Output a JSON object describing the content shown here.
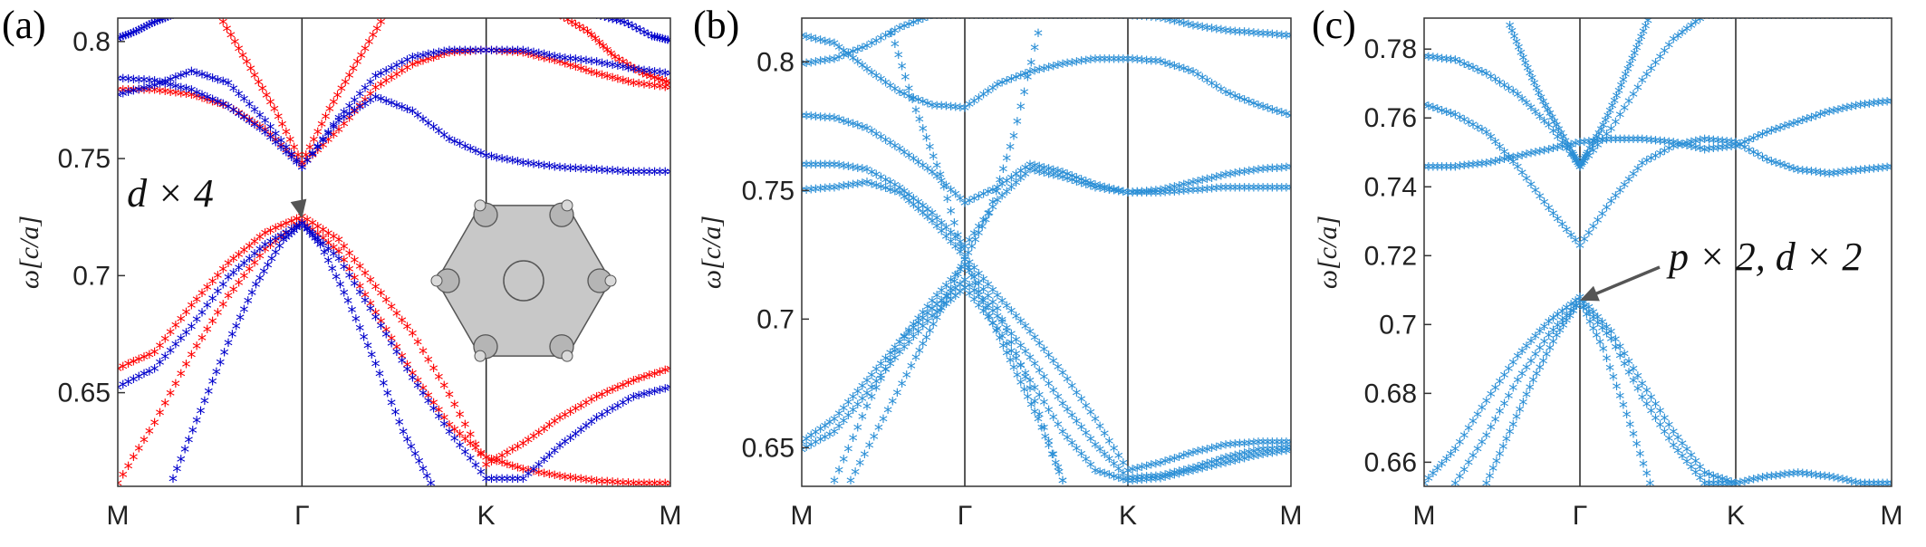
{
  "chart_data": [
    {
      "type": "scatter",
      "panel_label": "(a)",
      "ylabel": "ω[c/a]",
      "ylim": [
        0.61,
        0.81
      ],
      "yticks": [
        0.65,
        0.7,
        0.75,
        0.8
      ],
      "ytick_labels": [
        "0.65",
        "0.7",
        "0.75",
        "0.8"
      ],
      "xtick_labels": [
        "M",
        "Γ",
        "K",
        "M"
      ],
      "annotation": "d × 4",
      "annotation_target": {
        "x": 1.0,
        "y": 0.7245
      },
      "inset": "hexagonal-unit-cell",
      "series": [
        {
          "color": "#ff0000",
          "x": [
            0,
            0.2,
            0.4,
            0.6,
            0.8,
            1.0,
            1.2,
            1.4,
            1.6,
            1.8,
            2.0,
            2.2,
            2.4,
            2.6,
            2.8,
            3.0
          ],
          "y": [
            0.778,
            0.778,
            0.776,
            0.771,
            0.761,
            0.746,
            0.761,
            0.779,
            0.789,
            0.794,
            0.795,
            0.794,
            0.79,
            0.785,
            0.781,
            0.779
          ]
        },
        {
          "color": "#ff0000",
          "x": [
            0,
            0.2,
            0.4,
            0.6,
            0.8,
            1.0,
            1.2,
            1.4,
            1.6,
            1.8,
            2.0,
            2.2,
            2.4,
            2.6,
            2.8,
            3.0
          ],
          "y": [
            0.659,
            0.666,
            0.686,
            0.704,
            0.717,
            0.724,
            0.714,
            0.694,
            0.674,
            0.648,
            0.618,
            0.627,
            0.638,
            0.647,
            0.654,
            0.659
          ]
        },
        {
          "color": "#ff0000",
          "x": [
            0,
            0.2,
            0.4,
            0.6,
            0.8,
            1.0,
            1.2,
            1.4,
            1.6,
            1.8,
            2.0,
            2.2,
            2.4,
            2.6,
            2.8,
            3.0
          ],
          "y": [
            0.61,
            0.636,
            0.665,
            0.69,
            0.71,
            0.722,
            0.709,
            0.683,
            0.657,
            0.635,
            0.621,
            0.616,
            0.613,
            0.611,
            0.61,
            0.61
          ]
        },
        {
          "color": "#ff0000",
          "x": [
            0.55,
            0.7,
            0.85,
            1.0,
            1.15,
            1.3,
            1.45
          ],
          "y": [
            0.81,
            0.79,
            0.77,
            0.747,
            0.77,
            0.79,
            0.81
          ]
        },
        {
          "color": "#ff0000",
          "x": [
            2.4,
            2.55,
            2.7,
            2.85,
            3.0
          ],
          "y": [
            0.81,
            0.803,
            0.792,
            0.785,
            0.781
          ]
        },
        {
          "color": "#0000cc",
          "x": [
            0,
            0.2,
            0.4,
            0.6,
            0.8,
            1.0,
            1.2,
            1.4,
            1.6,
            1.8,
            2.0,
            2.2,
            2.4,
            2.6,
            2.8,
            3.0
          ],
          "y": [
            0.783,
            0.782,
            0.778,
            0.771,
            0.76,
            0.745,
            0.765,
            0.775,
            0.769,
            0.757,
            0.75,
            0.747,
            0.745,
            0.744,
            0.743,
            0.743
          ]
        },
        {
          "color": "#0000cc",
          "x": [
            0,
            0.2,
            0.4,
            0.6,
            0.8,
            1.0,
            1.2,
            1.4,
            1.6,
            1.8,
            2.0,
            2.2,
            2.4,
            2.6,
            2.8,
            3.0
          ],
          "y": [
            0.776,
            0.78,
            0.786,
            0.781,
            0.765,
            0.745,
            0.766,
            0.784,
            0.792,
            0.795,
            0.795,
            0.795,
            0.792,
            0.79,
            0.787,
            0.785
          ]
        },
        {
          "color": "#0000cc",
          "x": [
            0,
            0.2,
            0.4,
            0.6,
            0.8,
            1.0,
            1.2,
            1.4,
            1.6,
            1.8,
            2.0,
            2.2,
            2.4,
            2.6,
            2.8,
            3.0
          ],
          "y": [
            0.651,
            0.659,
            0.677,
            0.698,
            0.712,
            0.721,
            0.706,
            0.681,
            0.655,
            0.632,
            0.612,
            0.612,
            0.626,
            0.638,
            0.647,
            0.651
          ]
        },
        {
          "color": "#0000cc",
          "x": [
            0.3,
            0.45,
            0.6,
            0.75,
            0.9,
            1.0,
            1.1,
            1.25,
            1.4,
            1.55,
            1.7
          ],
          "y": [
            0.612,
            0.641,
            0.67,
            0.695,
            0.714,
            0.721,
            0.712,
            0.688,
            0.661,
            0.632,
            0.61
          ]
        },
        {
          "color": "#0000cc",
          "x": [
            0,
            0.1,
            0.2,
            0.3
          ],
          "y": [
            0.8,
            0.803,
            0.807,
            0.81
          ]
        },
        {
          "color": "#0000cc",
          "x": [
            2.6,
            2.75,
            2.9,
            3.0
          ],
          "y": [
            0.81,
            0.807,
            0.801,
            0.799
          ]
        }
      ]
    },
    {
      "type": "scatter",
      "panel_label": "(b)",
      "ylabel": "ω[c/a]",
      "ylim": [
        0.635,
        0.817
      ],
      "yticks": [
        0.65,
        0.7,
        0.75,
        0.8
      ],
      "ytick_labels": [
        "0.65",
        "0.7",
        "0.75",
        "0.8"
      ],
      "xtick_labels": [
        "M",
        "Γ",
        "K",
        "M"
      ],
      "series": [
        {
          "color": "#2b8fd6",
          "x": [
            0,
            0.2,
            0.4,
            0.6,
            0.8,
            1.0,
            1.2,
            1.4,
            1.6,
            1.8,
            2.0,
            2.2,
            2.4,
            2.6,
            2.8,
            3.0
          ],
          "y": [
            0.809,
            0.806,
            0.796,
            0.787,
            0.782,
            0.781,
            0.79,
            0.795,
            0.798,
            0.8,
            0.8,
            0.799,
            0.795,
            0.787,
            0.782,
            0.778
          ]
        },
        {
          "color": "#2b8fd6",
          "x": [
            0,
            0.2,
            0.4,
            0.6,
            0.8,
            1.0,
            1.2,
            1.4,
            1.6,
            1.8,
            2.0,
            2.2,
            2.4,
            2.6,
            2.8,
            3.0
          ],
          "y": [
            0.798,
            0.8,
            0.805,
            0.812,
            0.817,
            0.817,
            0.817,
            0.817,
            0.817,
            0.817,
            0.817,
            0.816,
            0.813,
            0.811,
            0.81,
            0.809
          ]
        },
        {
          "color": "#2b8fd6",
          "x": [
            0,
            0.2,
            0.4,
            0.6,
            0.8,
            1.0,
            1.2,
            1.4,
            1.6,
            1.8,
            2.0,
            2.2,
            2.4,
            2.6,
            2.8,
            3.0
          ],
          "y": [
            0.778,
            0.777,
            0.773,
            0.765,
            0.756,
            0.744,
            0.75,
            0.759,
            0.756,
            0.751,
            0.748,
            0.749,
            0.752,
            0.755,
            0.757,
            0.758
          ]
        },
        {
          "color": "#2b8fd6",
          "x": [
            0,
            0.2,
            0.4,
            0.6,
            0.8,
            1.0,
            1.2,
            1.4,
            1.6,
            1.8,
            2.0,
            2.2,
            2.4,
            2.6,
            2.8,
            3.0
          ],
          "y": [
            0.759,
            0.759,
            0.757,
            0.75,
            0.74,
            0.727,
            0.745,
            0.757,
            0.754,
            0.75,
            0.748,
            0.748,
            0.749,
            0.75,
            0.75,
            0.75
          ]
        },
        {
          "color": "#2b8fd6",
          "x": [
            0,
            0.2,
            0.4,
            0.6,
            0.8,
            1.0,
            1.2,
            1.4,
            1.6,
            1.8,
            2.0,
            2.2,
            2.4,
            2.6,
            2.8,
            3.0
          ],
          "y": [
            0.749,
            0.75,
            0.752,
            0.748,
            0.737,
            0.723,
            0.708,
            0.694,
            0.678,
            0.66,
            0.64,
            0.643,
            0.647,
            0.65,
            0.651,
            0.651
          ]
        },
        {
          "color": "#2b8fd6",
          "x": [
            0,
            0.2,
            0.4,
            0.6,
            0.8,
            1.0,
            1.2,
            1.4,
            1.6,
            1.8,
            2.0,
            2.2,
            2.4,
            2.6,
            2.8,
            3.0
          ],
          "y": [
            0.651,
            0.66,
            0.675,
            0.69,
            0.703,
            0.714,
            0.7,
            0.684,
            0.666,
            0.65,
            0.637,
            0.638,
            0.641,
            0.645,
            0.648,
            0.649
          ]
        },
        {
          "color": "#2b8fd6",
          "x": [
            0,
            0.2,
            0.4,
            0.6,
            0.8,
            1.0,
            1.2,
            1.4,
            1.6,
            1.8,
            2.0,
            2.2,
            2.4,
            2.6,
            2.8,
            3.0
          ],
          "y": [
            0.648,
            0.655,
            0.67,
            0.686,
            0.7,
            0.711,
            0.695,
            0.675,
            0.655,
            0.64,
            0.636,
            0.637,
            0.64,
            0.643,
            0.646,
            0.648
          ]
        },
        {
          "color": "#2b8fd6",
          "x": [
            0.2,
            0.4,
            0.6,
            0.8,
            1.0,
            1.2,
            1.4,
            1.6
          ],
          "y": [
            0.636,
            0.665,
            0.69,
            0.706,
            0.72,
            0.703,
            0.672,
            0.636
          ]
        },
        {
          "color": "#2b8fd6",
          "x": [
            0.3,
            0.5,
            0.7,
            0.85,
            1.0,
            1.15,
            1.3,
            1.45
          ],
          "y": [
            0.636,
            0.66,
            0.684,
            0.702,
            0.722,
            0.74,
            0.77,
            0.81
          ]
        },
        {
          "color": "#2b8fd6",
          "x": [
            0.55,
            0.7,
            0.85,
            1.0,
            1.15,
            1.3,
            1.45,
            1.6
          ],
          "y": [
            0.81,
            0.78,
            0.755,
            0.722,
            0.7,
            0.68,
            0.66,
            0.636
          ]
        }
      ]
    },
    {
      "type": "scatter",
      "panel_label": "(c)",
      "ylabel": "ω[c/a]",
      "ylim": [
        0.653,
        0.789
      ],
      "yticks": [
        0.66,
        0.68,
        0.7,
        0.72,
        0.74,
        0.76,
        0.78
      ],
      "ytick_labels": [
        "0.66",
        "0.68",
        "0.7",
        "0.72",
        "0.74",
        "0.76",
        "0.78"
      ],
      "xtick_labels": [
        "M",
        "Γ",
        "K",
        "M"
      ],
      "annotation": "p × 2, d × 2",
      "annotation_target": {
        "x": 1.0,
        "y": 0.707
      },
      "series": [
        {
          "color": "#2b8fd6",
          "x": [
            0,
            0.2,
            0.4,
            0.6,
            0.8,
            1.0,
            1.2,
            1.4,
            1.6,
            1.8,
            2.0,
            2.2,
            2.4,
            2.6,
            2.8,
            3.0
          ],
          "y": [
            0.777,
            0.776,
            0.772,
            0.766,
            0.757,
            0.745,
            0.756,
            0.77,
            0.782,
            0.789,
            0.789,
            0.789,
            0.789,
            0.789,
            0.789,
            0.789
          ]
        },
        {
          "color": "#2b8fd6",
          "x": [
            0,
            0.2,
            0.4,
            0.6,
            0.8,
            1.0,
            1.2,
            1.4,
            1.6,
            1.8,
            2.0,
            2.2,
            2.4,
            2.6,
            2.8,
            3.0
          ],
          "y": [
            0.763,
            0.76,
            0.755,
            0.745,
            0.733,
            0.722,
            0.735,
            0.746,
            0.751,
            0.753,
            0.752,
            0.747,
            0.744,
            0.743,
            0.744,
            0.745
          ]
        },
        {
          "color": "#2b8fd6",
          "x": [
            0,
            0.2,
            0.4,
            0.6,
            0.8,
            1.0,
            1.2,
            1.4,
            1.6,
            1.8,
            2.0,
            2.2,
            2.4,
            2.6,
            2.8,
            3.0
          ],
          "y": [
            0.745,
            0.745,
            0.746,
            0.748,
            0.75,
            0.752,
            0.753,
            0.753,
            0.752,
            0.75,
            0.751,
            0.755,
            0.758,
            0.761,
            0.763,
            0.764
          ]
        },
        {
          "color": "#2b8fd6",
          "x": [
            0,
            0.2,
            0.4,
            0.6,
            0.8,
            1.0,
            1.2,
            1.4,
            1.6,
            1.8,
            2.0,
            2.2,
            2.4,
            2.6,
            2.8,
            3.0
          ],
          "y": [
            0.653,
            0.663,
            0.677,
            0.69,
            0.7,
            0.707,
            0.697,
            0.682,
            0.668,
            0.656,
            0.653,
            0.655,
            0.656,
            0.655,
            0.653,
            0.653
          ]
        },
        {
          "color": "#2b8fd6",
          "x": [
            0.2,
            0.4,
            0.6,
            0.8,
            1.0,
            1.2,
            1.4,
            1.6,
            1.8,
            2.0
          ],
          "y": [
            0.653,
            0.667,
            0.683,
            0.696,
            0.706,
            0.695,
            0.678,
            0.664,
            0.653,
            0.653
          ]
        },
        {
          "color": "#2b8fd6",
          "x": [
            0.4,
            0.55,
            0.7,
            0.85,
            1.0,
            1.15,
            1.3,
            1.45
          ],
          "y": [
            0.653,
            0.668,
            0.683,
            0.696,
            0.706,
            0.692,
            0.673,
            0.653
          ]
        },
        {
          "color": "#2b8fd6",
          "x": [
            0.55,
            0.65,
            0.75,
            0.85,
            0.95,
            1.0,
            1.05,
            1.15,
            1.25,
            1.35,
            1.45
          ],
          "y": [
            0.786,
            0.775,
            0.765,
            0.757,
            0.749,
            0.745,
            0.749,
            0.757,
            0.767,
            0.778,
            0.789
          ]
        }
      ]
    }
  ]
}
